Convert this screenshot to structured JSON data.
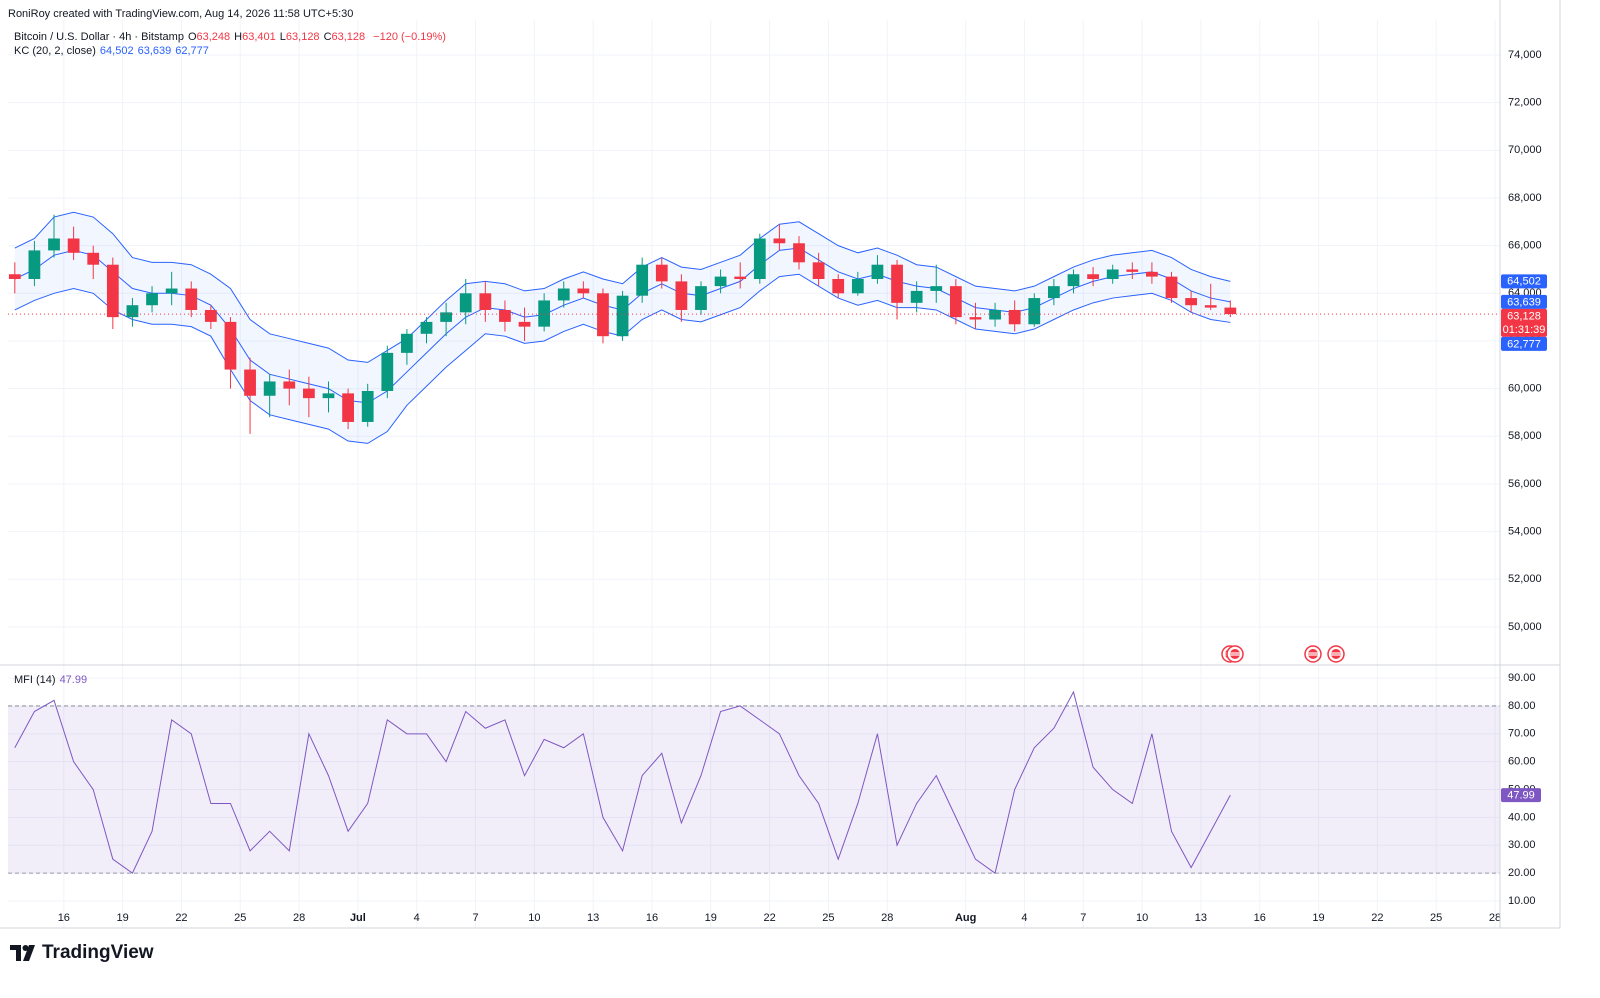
{
  "header": {
    "credit": "RoniRoy created with TradingView.com, Aug 14, 2026 11:58 UTC+5:30",
    "brand": "TradingView"
  },
  "chart_data": [
    {
      "type": "candlestick",
      "title": "Bitcoin / U.S. Dollar · 4h · Bitstamp",
      "ohlc": [
        {
          "label": "O",
          "value": "63,248"
        },
        {
          "label": "H",
          "value": "63,401"
        },
        {
          "label": "L",
          "value": "63,128"
        },
        {
          "label": "C",
          "value": "63,128"
        }
      ],
      "change": "−120 (−0.19%)",
      "indicator": "KC (20, 2, close)",
      "indicator_values": [
        "64,502",
        "63,639",
        "62,777"
      ],
      "up_color": "#089981",
      "down_color": "#f23645",
      "xlim": [
        "2026-06-13",
        "2026-08-28"
      ],
      "x": [
        "2026-06-13",
        "2026-06-14",
        "2026-06-15",
        "2026-06-16",
        "2026-06-17",
        "2026-06-18",
        "2026-06-19",
        "2026-06-20",
        "2026-06-21",
        "2026-06-22",
        "2026-06-23",
        "2026-06-24",
        "2026-06-25",
        "2026-06-26",
        "2026-06-27",
        "2026-06-28",
        "2026-06-29",
        "2026-06-30",
        "2026-07-01",
        "2026-07-02",
        "2026-07-03",
        "2026-07-04",
        "2026-07-05",
        "2026-07-06",
        "2026-07-07",
        "2026-07-08",
        "2026-07-09",
        "2026-07-10",
        "2026-07-11",
        "2026-07-12",
        "2026-07-13",
        "2026-07-14",
        "2026-07-15",
        "2026-07-16",
        "2026-07-17",
        "2026-07-18",
        "2026-07-19",
        "2026-07-20",
        "2026-07-21",
        "2026-07-22",
        "2026-07-23",
        "2026-07-24",
        "2026-07-25",
        "2026-07-26",
        "2026-07-27",
        "2026-07-28",
        "2026-07-29",
        "2026-07-30",
        "2026-07-31",
        "2026-08-01",
        "2026-08-02",
        "2026-08-03",
        "2026-08-04",
        "2026-08-05",
        "2026-08-06",
        "2026-08-07",
        "2026-08-08",
        "2026-08-09",
        "2026-08-10",
        "2026-08-11",
        "2026-08-12",
        "2026-08-13",
        "2026-08-14"
      ],
      "open": [
        64800,
        64600,
        65800,
        66300,
        65700,
        65200,
        63000,
        63500,
        64000,
        64200,
        63300,
        62800,
        60800,
        59700,
        60300,
        60000,
        59600,
        59800,
        58600,
        59900,
        61500,
        62300,
        62800,
        63200,
        64000,
        63300,
        62800,
        62600,
        63700,
        64200,
        64000,
        62200,
        63900,
        65200,
        64500,
        63300,
        64300,
        64700,
        64600,
        66300,
        66100,
        65300,
        64600,
        64000,
        64600,
        65200,
        63600,
        64100,
        64300,
        63000,
        62900,
        63300,
        62700,
        63800,
        64300,
        64800,
        64600,
        65000,
        64900,
        64700,
        63800,
        63500,
        63400
      ],
      "high": [
        65300,
        66200,
        67300,
        66800,
        66000,
        65500,
        63800,
        64300,
        64900,
        64500,
        63500,
        63000,
        61300,
        60600,
        60800,
        60500,
        60300,
        60000,
        60200,
        61800,
        62500,
        63000,
        63600,
        64600,
        64500,
        63700,
        63400,
        64000,
        64500,
        64500,
        64200,
        64100,
        65500,
        65500,
        64800,
        64500,
        65000,
        65300,
        66500,
        66900,
        66400,
        65700,
        64800,
        64900,
        65600,
        65400,
        64500,
        65200,
        64600,
        63600,
        63600,
        63700,
        64000,
        64600,
        65000,
        65100,
        65200,
        65300,
        65300,
        64900,
        64100,
        64400,
        63700
      ],
      "low": [
        64000,
        64300,
        65500,
        65400,
        64600,
        62500,
        62600,
        63200,
        63500,
        63000,
        62500,
        60000,
        58100,
        58800,
        59300,
        58800,
        59000,
        58300,
        58400,
        59600,
        61000,
        61900,
        62200,
        62700,
        62800,
        62400,
        62000,
        62400,
        63400,
        63800,
        61900,
        62000,
        63600,
        64200,
        62800,
        63100,
        64000,
        64200,
        64400,
        65800,
        65000,
        64300,
        63800,
        63900,
        64400,
        62900,
        63200,
        63600,
        62700,
        62500,
        62600,
        62400,
        62600,
        63500,
        64000,
        64300,
        64400,
        64600,
        64400,
        63600,
        63200,
        63300,
        63000
      ],
      "close": [
        64600,
        65800,
        66300,
        65700,
        65200,
        63000,
        63500,
        64000,
        64200,
        63300,
        62800,
        60800,
        59700,
        60300,
        60000,
        59600,
        59800,
        58600,
        59900,
        61500,
        62300,
        62800,
        63200,
        64000,
        63300,
        62800,
        62600,
        63700,
        64200,
        64000,
        62200,
        63900,
        65200,
        64500,
        63300,
        64300,
        64700,
        64600,
        66300,
        66100,
        65300,
        64600,
        64000,
        64600,
        65200,
        63600,
        64100,
        64300,
        63000,
        62900,
        63300,
        62700,
        63800,
        64300,
        64800,
        64600,
        65000,
        64900,
        64700,
        63800,
        63500,
        63400,
        63128
      ],
      "series": [
        {
          "color": "#2962ff",
          "values": [
            65900,
            66300,
            67200,
            67400,
            67200,
            66500,
            65500,
            65300,
            65300,
            65200,
            64800,
            64200,
            62900,
            62300,
            62100,
            61900,
            61700,
            61200,
            61100,
            61600,
            62100,
            62900,
            63700,
            64400,
            64500,
            64400,
            64100,
            64200,
            64600,
            64900,
            64600,
            64400,
            65100,
            65500,
            65100,
            65000,
            65300,
            65600,
            66300,
            66900,
            67000,
            66500,
            66000,
            65700,
            65900,
            65600,
            65200,
            65100,
            64700,
            64300,
            64200,
            64100,
            64300,
            64700,
            65100,
            65400,
            65600,
            65700,
            65800,
            65500,
            65000,
            64700,
            64502
          ]
        },
        {
          "color": "#2962ff",
          "values": [
            64600,
            65000,
            65600,
            65800,
            65600,
            64900,
            64200,
            64000,
            64000,
            63900,
            63500,
            62500,
            61200,
            60600,
            60400,
            60200,
            60000,
            59500,
            59400,
            59900,
            60700,
            61500,
            62300,
            63000,
            63400,
            63300,
            63000,
            63100,
            63500,
            63800,
            63500,
            63300,
            64000,
            64400,
            64000,
            63900,
            64200,
            64500,
            65200,
            65800,
            65900,
            65400,
            64900,
            64600,
            64800,
            64500,
            64300,
            64200,
            63800,
            63400,
            63300,
            63200,
            63400,
            63800,
            64200,
            64500,
            64700,
            64800,
            64900,
            64600,
            64100,
            63800,
            63639
          ]
        },
        {
          "color": "#2962ff",
          "values": [
            63300,
            63700,
            64000,
            64200,
            64000,
            63300,
            62900,
            62700,
            62700,
            62600,
            62200,
            60800,
            59500,
            58900,
            58700,
            58500,
            58300,
            57800,
            57700,
            58200,
            59300,
            60100,
            60900,
            61600,
            62300,
            62200,
            61900,
            62000,
            62400,
            62700,
            62400,
            62200,
            62900,
            63300,
            62900,
            62800,
            63100,
            63400,
            64100,
            64700,
            64800,
            64300,
            63800,
            63500,
            63700,
            63400,
            63400,
            63300,
            62900,
            62500,
            62400,
            62300,
            62500,
            62900,
            63300,
            63600,
            63800,
            63900,
            64000,
            63700,
            63200,
            62900,
            62777
          ]
        }
      ],
      "price_tags": [
        {
          "value": 64502,
          "label": "64,502",
          "color": "#2962ff"
        },
        {
          "value": 63639,
          "label": "63,639",
          "color": "#2962ff"
        },
        {
          "value": 63128,
          "label": "63,128",
          "color": "#f23645",
          "countdown": "01:31:39"
        },
        {
          "value": 62777,
          "label": "62,777",
          "color": "#2962ff"
        }
      ],
      "ylim": [
        48400,
        75470
      ],
      "yticks": [
        {
          "value": 50000,
          "label": "50,000"
        },
        {
          "value": 52000,
          "label": "52,000"
        },
        {
          "value": 54000,
          "label": "54,000"
        },
        {
          "value": 56000,
          "label": "56,000"
        },
        {
          "value": 58000,
          "label": "58,000"
        },
        {
          "value": 60000,
          "label": "60,000"
        },
        {
          "value": 62000,
          "label": "62,000"
        },
        {
          "value": 64000,
          "label": "64,000"
        },
        {
          "value": 66000,
          "label": "66,000"
        },
        {
          "value": 68000,
          "label": "68,000"
        },
        {
          "value": 70000,
          "label": "70,000"
        },
        {
          "value": 72000,
          "label": "72,000"
        },
        {
          "value": 74000,
          "label": "74,000"
        }
      ],
      "grid": true
    },
    {
      "type": "line",
      "xlim": [
        "2026-06-13",
        "2026-08-28"
      ],
      "x": [
        "2026-06-13",
        "2026-06-14",
        "2026-06-15",
        "2026-06-16",
        "2026-06-17",
        "2026-06-18",
        "2026-06-19",
        "2026-06-20",
        "2026-06-21",
        "2026-06-22",
        "2026-06-23",
        "2026-06-24",
        "2026-06-25",
        "2026-06-26",
        "2026-06-27",
        "2026-06-28",
        "2026-06-29",
        "2026-06-30",
        "2026-07-01",
        "2026-07-02",
        "2026-07-03",
        "2026-07-04",
        "2026-07-05",
        "2026-07-06",
        "2026-07-07",
        "2026-07-08",
        "2026-07-09",
        "2026-07-10",
        "2026-07-11",
        "2026-07-12",
        "2026-07-13",
        "2026-07-14",
        "2026-07-15",
        "2026-07-16",
        "2026-07-17",
        "2026-07-18",
        "2026-07-19",
        "2026-07-20",
        "2026-07-21",
        "2026-07-22",
        "2026-07-23",
        "2026-07-24",
        "2026-07-25",
        "2026-07-26",
        "2026-07-27",
        "2026-07-28",
        "2026-07-29",
        "2026-07-30",
        "2026-07-31",
        "2026-08-01",
        "2026-08-02",
        "2026-08-03",
        "2026-08-04",
        "2026-08-05",
        "2026-08-06",
        "2026-08-07",
        "2026-08-08",
        "2026-08-09",
        "2026-08-10",
        "2026-08-11",
        "2026-08-12",
        "2026-08-13",
        "2026-08-14"
      ],
      "series": [
        {
          "name": "MFI (14)",
          "color": "#7e57c2",
          "last_label": "47.99",
          "values": [
            65,
            78,
            82,
            60,
            50,
            25,
            20,
            35,
            75,
            70,
            45,
            45,
            28,
            35,
            28,
            70,
            55,
            35,
            45,
            75,
            70,
            70,
            60,
            78,
            72,
            75,
            55,
            68,
            65,
            70,
            40,
            28,
            55,
            63,
            38,
            55,
            78,
            80,
            75,
            70,
            55,
            45,
            25,
            45,
            70,
            30,
            45,
            55,
            40,
            25,
            20,
            50,
            65,
            72,
            85,
            58,
            50,
            45,
            70,
            35,
            22,
            35,
            47.99
          ]
        }
      ],
      "bands": [
        20,
        80
      ],
      "ylim": [
        0.3,
        94.7
      ],
      "yticks": [
        {
          "value": 10,
          "label": "10.00"
        },
        {
          "value": 20,
          "label": "20.00"
        },
        {
          "value": 30,
          "label": "30.00"
        },
        {
          "value": 40,
          "label": "40.00"
        },
        {
          "value": 50,
          "label": "50.00"
        },
        {
          "value": 60,
          "label": "60.00"
        },
        {
          "value": 70,
          "label": "70.00"
        },
        {
          "value": 80,
          "label": "80.00"
        },
        {
          "value": 90,
          "label": "90.00"
        }
      ],
      "xticks": [
        {
          "value": "2026-06-16",
          "label": "16"
        },
        {
          "value": "2026-06-19",
          "label": "19"
        },
        {
          "value": "2026-06-22",
          "label": "22"
        },
        {
          "value": "2026-06-25",
          "label": "25"
        },
        {
          "value": "2026-06-28",
          "label": "28"
        },
        {
          "value": "2026-07-01",
          "label": "Jul"
        },
        {
          "value": "2026-07-04",
          "label": "4"
        },
        {
          "value": "2026-07-07",
          "label": "7"
        },
        {
          "value": "2026-07-10",
          "label": "10"
        },
        {
          "value": "2026-07-13",
          "label": "13"
        },
        {
          "value": "2026-07-16",
          "label": "16"
        },
        {
          "value": "2026-07-19",
          "label": "19"
        },
        {
          "value": "2026-07-22",
          "label": "22"
        },
        {
          "value": "2026-07-25",
          "label": "25"
        },
        {
          "value": "2026-07-28",
          "label": "28"
        },
        {
          "value": "2026-08-01",
          "label": "Aug"
        },
        {
          "value": "2026-08-04",
          "label": "4"
        },
        {
          "value": "2026-08-07",
          "label": "7"
        },
        {
          "value": "2026-08-10",
          "label": "10"
        },
        {
          "value": "2026-08-13",
          "label": "13"
        },
        {
          "value": "2026-08-16",
          "label": "16"
        },
        {
          "value": "2026-08-19",
          "label": "19"
        },
        {
          "value": "2026-08-22",
          "label": "22"
        },
        {
          "value": "2026-08-25",
          "label": "25"
        },
        {
          "value": "2026-08-28",
          "label": "28"
        }
      ],
      "grid": true
    }
  ]
}
